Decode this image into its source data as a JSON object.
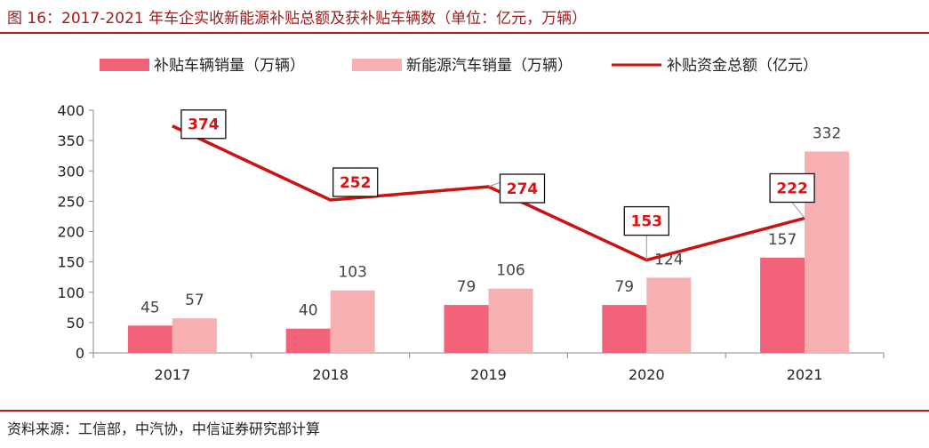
{
  "title": "图 16：2017-2021 年车企实收新能源补贴总额及获补贴车辆数（单位：亿元，万辆）",
  "source": "资料来源：工信部，中汽协，中信证券研究部计算",
  "colors": {
    "subsidized_bar": "#f2637a",
    "nev_bar": "#f7b0b2",
    "line": "#cc1111",
    "label_red": "#e01010",
    "rule": "#b71c1c"
  },
  "chart_data": {
    "type": "bar",
    "categories": [
      "2017",
      "2018",
      "2019",
      "2020",
      "2021"
    ],
    "ylim": [
      0,
      400
    ],
    "yticks": [
      0,
      50,
      100,
      150,
      200,
      250,
      300,
      350,
      400
    ],
    "legend_position": "top",
    "series": [
      {
        "name": "补贴车辆销量（万辆）",
        "type": "bar",
        "values": [
          45,
          40,
          79,
          79,
          157
        ]
      },
      {
        "name": "新能源汽车销量（万辆）",
        "type": "bar",
        "values": [
          57,
          103,
          106,
          124,
          332
        ]
      },
      {
        "name": "补贴资金总额（亿元）",
        "type": "line",
        "values": [
          374,
          252,
          274,
          153,
          222
        ]
      }
    ]
  }
}
